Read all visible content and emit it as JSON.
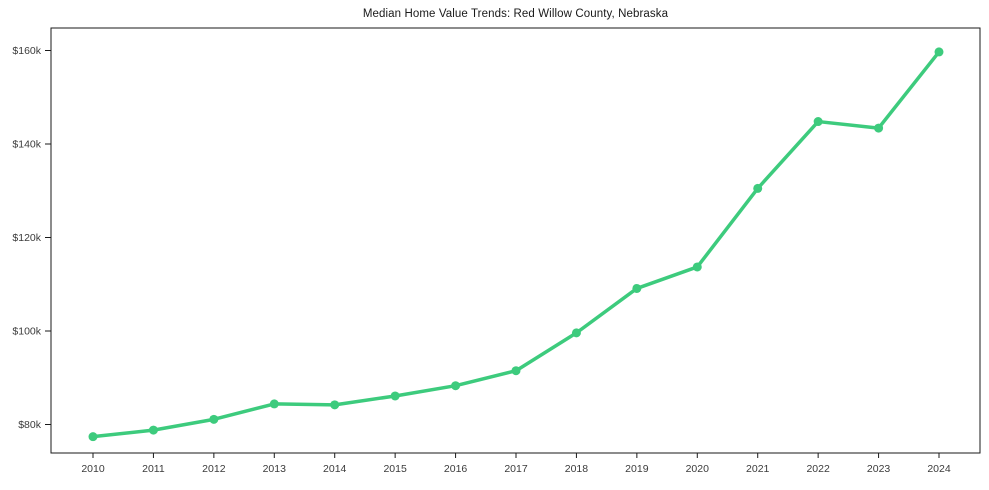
{
  "title": "Median Home Value Trends: Red Willow County, Nebraska",
  "chart_data": {
    "type": "line",
    "title": "Median Home Value Trends: Red Willow County, Nebraska",
    "xlabel": "",
    "ylabel": "",
    "x": [
      2010,
      2011,
      2012,
      2013,
      2014,
      2015,
      2016,
      2017,
      2018,
      2019,
      2020,
      2021,
      2022,
      2023,
      2024
    ],
    "series": [
      {
        "name": "Median Home Value",
        "values": [
          77400,
          78800,
          81100,
          84400,
          84200,
          86100,
          88300,
          91500,
          99600,
          109100,
          113700,
          130500,
          144800,
          143400,
          159700
        ]
      }
    ],
    "ylim": [
      74000,
      165000
    ],
    "yticks": {
      "values": [
        80000,
        100000,
        120000,
        140000,
        160000
      ],
      "labels": [
        "$80k",
        "$100k",
        "$120k",
        "$140k",
        "$160k"
      ]
    },
    "grid": false,
    "legend": false,
    "colors": {
      "line": "#3dcb7d",
      "marker": "#3dcb7d",
      "spine": "#1a1a1a",
      "tick_text": "#3b3b3b",
      "background": "#ffffff"
    }
  }
}
